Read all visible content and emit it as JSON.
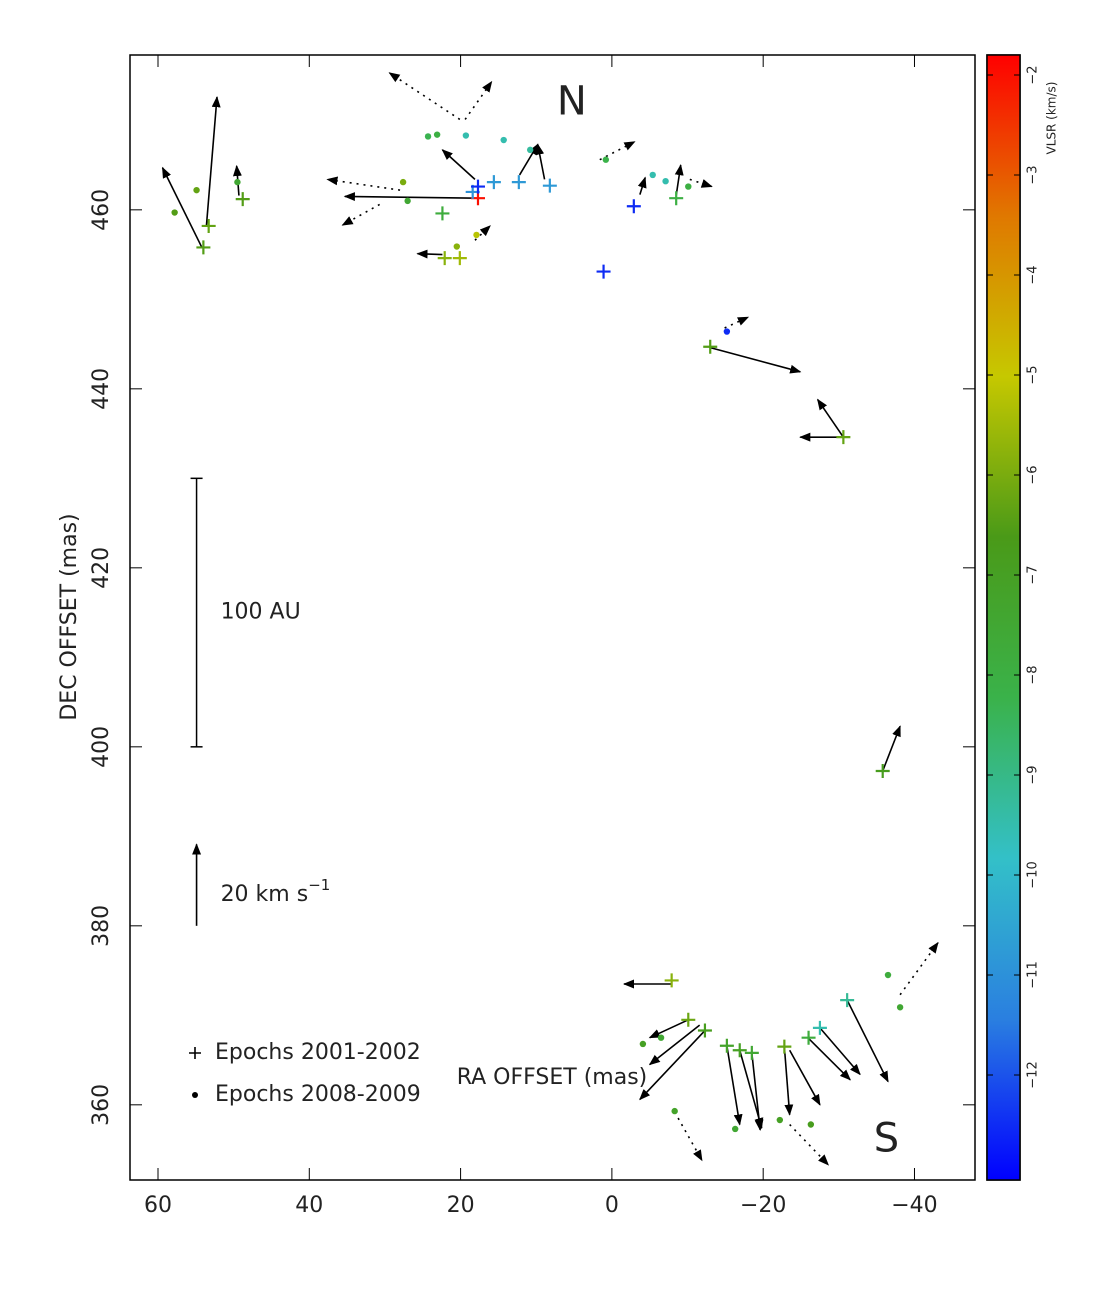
{
  "chart_data": {
    "type": "scatter",
    "xlabel": "RA OFFSET (mas)",
    "ylabel": "DEC OFFSET (mas)",
    "xlim": [
      63.7,
      -48.0
    ],
    "ylim": [
      351.6,
      477.3
    ],
    "xticks": [
      60,
      40,
      20,
      0,
      {
        "value": -20,
        "label": "−20"
      },
      {
        "value": -40,
        "label": "−40"
      }
    ],
    "yticks": [
      360,
      380,
      400,
      420,
      440,
      460
    ],
    "colorbar": {
      "label": "VLSR (km/s)",
      "clim": [
        -13.05,
        -1.8
      ],
      "colormap": [
        "#0000ff",
        "#2a7fe0",
        "#33c0c8",
        "#3ab24a",
        "#4a9a18",
        "#c6c800",
        "#e07800",
        "#ff0000"
      ],
      "ticks": [
        {
          "value": -2,
          "label": "−2"
        },
        {
          "value": -3,
          "label": "−3"
        },
        {
          "value": -4,
          "label": "−4"
        },
        {
          "value": -5,
          "label": "−5"
        },
        {
          "value": -6,
          "label": "−6"
        },
        {
          "value": -7,
          "label": "−7"
        },
        {
          "value": -8,
          "label": "−8"
        },
        {
          "value": -9,
          "label": "−9"
        },
        {
          "value": -10,
          "label": "−10"
        },
        {
          "value": -11,
          "label": "−11"
        },
        {
          "value": -12,
          "label": "−12"
        }
      ]
    },
    "series": [
      {
        "name": "Epochs 2001-2002",
        "marker": "plus",
        "x": [
          54.0,
          53.3,
          48.8,
          22.1,
          20.1,
          22.4,
          17.7,
          18.4,
          17.7,
          15.6,
          12.3,
          8.2,
          1.1,
          -2.9,
          -8.5,
          -13.0,
          -30.6,
          -35.8,
          -7.9,
          -10.1,
          -12.3,
          -15.2,
          -16.9,
          -18.5,
          -22.8,
          -26.0,
          -27.5,
          -31.1
        ],
        "y": [
          455.8,
          458.2,
          461.2,
          454.6,
          454.6,
          459.6,
          461.3,
          462.0,
          462.6,
          463.1,
          463.1,
          462.7,
          453.1,
          460.4,
          461.3,
          444.7,
          434.6,
          397.3,
          373.9,
          369.5,
          368.3,
          366.6,
          366.1,
          365.8,
          366.5,
          367.5,
          368.6,
          371.7
        ],
        "vlsr": [
          -6.5,
          -6.3,
          -6.5,
          -5.8,
          -5.5,
          -7.8,
          -2.0,
          -11.0,
          -12.5,
          -10.8,
          -10.8,
          -10.8,
          -12.5,
          -12.5,
          -8.0,
          -6.5,
          -6.3,
          -6.8,
          -5.8,
          -6.2,
          -6.8,
          -7.2,
          -7.0,
          -7.5,
          -6.3,
          -7.8,
          -9.5,
          -9.2
        ]
      },
      {
        "name": "Epochs 2008-2009",
        "marker": "dot",
        "x": [
          57.8,
          54.9,
          49.5,
          27.6,
          27.0,
          24.3,
          23.1,
          19.3,
          14.3,
          10.8,
          17.9,
          20.5,
          0.8,
          -5.4,
          -7.1,
          -10.1,
          -15.2,
          -4.1,
          -6.5,
          -8.3,
          -16.3,
          -22.2,
          -26.3,
          -36.5,
          -38.1
        ],
        "y": [
          459.7,
          462.2,
          463.1,
          463.1,
          461.0,
          468.2,
          468.4,
          468.3,
          467.8,
          466.7,
          457.2,
          455.9,
          465.6,
          463.9,
          463.2,
          462.6,
          446.4,
          366.8,
          367.5,
          359.3,
          357.3,
          358.3,
          357.8,
          374.5,
          370.9
        ],
        "vlsr": [
          -6.5,
          -6.3,
          -7.5,
          -6.0,
          -7.5,
          -8.3,
          -8.0,
          -9.5,
          -9.5,
          -9.3,
          -5.2,
          -5.8,
          -8.2,
          -9.5,
          -9.5,
          -8.0,
          -12.5,
          -7.0,
          -7.5,
          -7.2,
          -7.5,
          -7.0,
          -6.8,
          -7.8,
          -7.5
        ]
      }
    ],
    "arrows": [
      [
        54.2,
        455.8,
        59.4,
        464.7
      ],
      [
        53.6,
        458.2,
        52.2,
        472.6
      ],
      [
        49.3,
        461.6,
        49.6,
        464.9
      ],
      [
        17.7,
        461.3,
        35.3,
        461.5
      ],
      [
        22.4,
        455.0,
        25.7,
        455.1
      ],
      [
        18.1,
        463.4,
        22.4,
        466.7
      ],
      [
        8.9,
        463.4,
        9.8,
        467.3
      ],
      [
        12.2,
        463.9,
        9.8,
        467.3
      ],
      [
        -3.7,
        461.7,
        -4.4,
        463.6
      ],
      [
        -8.5,
        461.6,
        -9.1,
        465.0
      ],
      [
        -13.0,
        444.6,
        -24.9,
        441.9
      ],
      [
        -30.6,
        434.6,
        -27.2,
        438.8
      ],
      [
        -30.6,
        434.6,
        -24.9,
        434.6
      ],
      [
        -35.8,
        397.3,
        -38.1,
        402.3
      ],
      [
        -7.9,
        373.5,
        -1.6,
        373.5
      ],
      [
        -10.1,
        369.5,
        -5.0,
        367.5
      ],
      [
        -11.6,
        368.9,
        -5.0,
        364.5
      ],
      [
        -12.3,
        368.3,
        -3.7,
        360.6
      ],
      [
        -15.2,
        366.6,
        -16.9,
        357.8
      ],
      [
        -16.9,
        366.1,
        -19.8,
        357.4
      ],
      [
        -18.5,
        365.8,
        -19.6,
        357.2
      ],
      [
        -22.8,
        366.5,
        -23.5,
        358.9
      ],
      [
        -23.5,
        366.1,
        -27.5,
        360.0
      ],
      [
        -25.9,
        367.5,
        -31.5,
        362.8
      ],
      [
        -27.5,
        368.6,
        -32.8,
        363.4
      ],
      [
        -31.1,
        371.7,
        -36.5,
        362.6
      ]
    ],
    "dotted_arrows": [
      [
        20.1,
        470.1,
        29.4,
        475.3
      ],
      [
        19.4,
        470.1,
        15.9,
        474.3
      ],
      [
        28.0,
        462.2,
        37.6,
        463.4
      ],
      [
        30.7,
        460.6,
        35.6,
        458.3
      ],
      [
        1.6,
        465.6,
        -3.0,
        467.6
      ],
      [
        -10.3,
        463.4,
        -13.2,
        462.6
      ],
      [
        -8.3,
        359.2,
        -11.9,
        353.8
      ],
      [
        -23.5,
        357.8,
        -28.6,
        353.3
      ],
      [
        -38.1,
        372.3,
        -43.1,
        378.1
      ],
      [
        -14.9,
        446.8,
        -18.0,
        448.0
      ],
      [
        18.1,
        456.6,
        16.1,
        458.2
      ]
    ],
    "scale_bar": {
      "label": "100 AU",
      "x": 54.9,
      "y": [
        400,
        430
      ]
    },
    "velocity_arrow": {
      "label": "20 km s",
      "exponent": "−1",
      "x": 54.9,
      "y": [
        380,
        389.1
      ]
    },
    "annotations": [
      {
        "text": "N",
        "x": 5.3,
        "y": 471.9
      },
      {
        "text": "S",
        "x": -36.3,
        "y": 356.0
      }
    ],
    "legend": "lower left"
  }
}
